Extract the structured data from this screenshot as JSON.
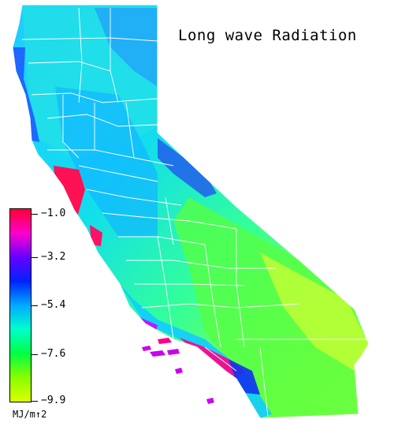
{
  "title": "Long wave Radiation",
  "legend": {
    "ticks": [
      "−1.0",
      "−3.2",
      "−5.4",
      "−7.6",
      "−9.9"
    ],
    "units": "MJ/m↑2",
    "min": -9.9,
    "max": -1.0,
    "gradient": [
      "#ff0033",
      "#ff00cc",
      "#6600ff",
      "#0022ff",
      "#00aaff",
      "#00ffcc",
      "#00ff44",
      "#88ff00",
      "#ddff00"
    ]
  },
  "colors": {
    "county_lines": "#ffffff",
    "coast_north": "#2266ff",
    "central_valley": "#11bbff",
    "sierra": "#2255ee",
    "desert": "#77ff22",
    "far_desert": "#ccff33",
    "bay_area": "#ff1155",
    "southern_coast": "#0044ff"
  }
}
